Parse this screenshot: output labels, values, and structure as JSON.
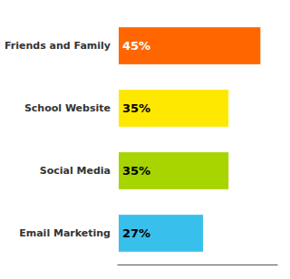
{
  "chart_data": {
    "type": "bar",
    "orientation": "horizontal",
    "categories": [
      "Friends and Family",
      "School Website",
      "Social Media",
      "Email Marketing"
    ],
    "values": [
      45,
      35,
      35,
      27
    ],
    "value_labels": [
      "45%",
      "35%",
      "35%",
      "27%"
    ],
    "colors": [
      "#FF6600",
      "#FFE800",
      "#A8D400",
      "#39BFEC"
    ],
    "xlim": [
      0,
      50
    ],
    "data_labels": true,
    "tick_labels": "y",
    "grid": false
  }
}
